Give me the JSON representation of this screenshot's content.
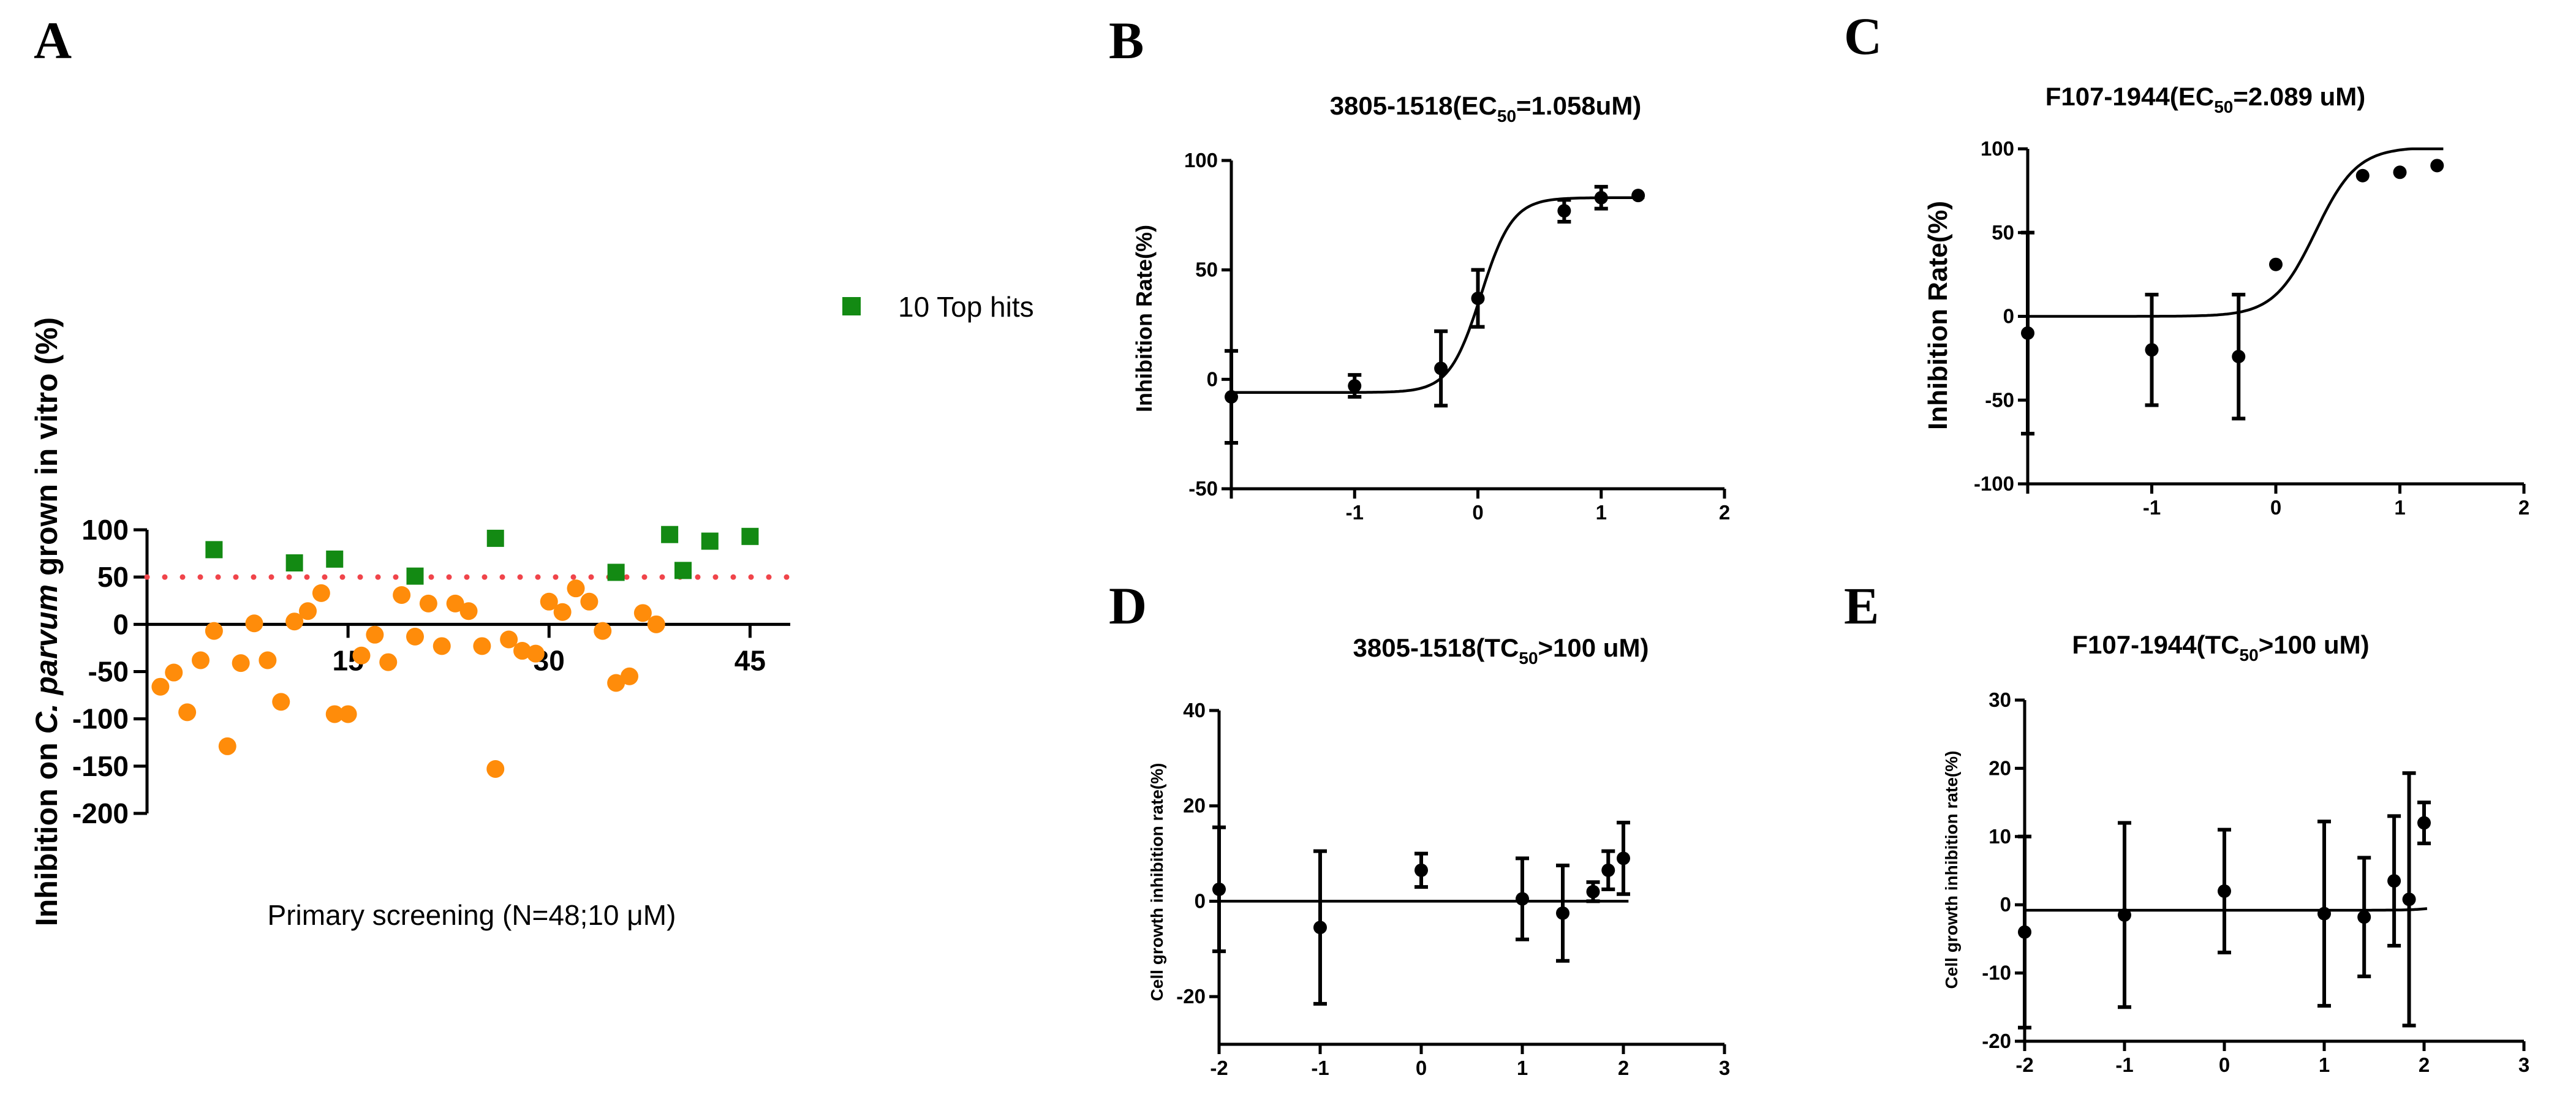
{
  "chart_data": [
    {
      "panel": "A",
      "type": "scatter",
      "ylabel_prefix": "Inhibition on ",
      "ylabel_italic": "C. parvum",
      "ylabel_suffix": " grown in vitro (%)",
      "xlabel": "Primary screening (N=48;10 μM)",
      "ylim": [
        -200,
        100
      ],
      "xlim": [
        0,
        48
      ],
      "yticks": [
        100,
        50,
        0,
        -50,
        -100,
        -150,
        -200
      ],
      "xticks": [
        15,
        30,
        45
      ],
      "threshold": 50,
      "legend": {
        "label": "10 Top hits",
        "placement": "right"
      },
      "series": [
        {
          "name": "10 Top hits",
          "color": "#138a13",
          "marker": "square",
          "points": [
            [
              5,
              79
            ],
            [
              11,
              65
            ],
            [
              14,
              69
            ],
            [
              20,
              51
            ],
            [
              26,
              91
            ],
            [
              35,
              55
            ],
            [
              39,
              95
            ],
            [
              40,
              57
            ],
            [
              42,
              88
            ],
            [
              45,
              93
            ]
          ]
        },
        {
          "name": "",
          "color": "#ff8c0a",
          "marker": "circle",
          "points": [
            [
              1,
              -66
            ],
            [
              2,
              -51
            ],
            [
              3,
              -93
            ],
            [
              4,
              -38
            ],
            [
              5,
              -7
            ],
            [
              6,
              -129
            ],
            [
              7,
              -41
            ],
            [
              8,
              1
            ],
            [
              9,
              -38
            ],
            [
              10,
              -82
            ],
            [
              11,
              3
            ],
            [
              12,
              14
            ],
            [
              13,
              33
            ],
            [
              14,
              -95
            ],
            [
              15,
              -95
            ],
            [
              16,
              -33
            ],
            [
              17,
              -11
            ],
            [
              18,
              -40
            ],
            [
              19,
              31
            ],
            [
              20,
              -13
            ],
            [
              21,
              22
            ],
            [
              22,
              -23
            ],
            [
              23,
              22
            ],
            [
              24,
              14
            ],
            [
              25,
              -23
            ],
            [
              26,
              -153
            ],
            [
              27,
              -16
            ],
            [
              28,
              -28
            ],
            [
              29,
              -31
            ],
            [
              30,
              24
            ],
            [
              31,
              13
            ],
            [
              32,
              38
            ],
            [
              33,
              24
            ],
            [
              34,
              -7
            ],
            [
              35,
              -62
            ],
            [
              36,
              -55
            ],
            [
              37,
              12
            ],
            [
              38,
              0
            ]
          ]
        }
      ]
    },
    {
      "panel": "B",
      "type": "line",
      "title_pre": "3805-1518(EC",
      "title_sub": "50",
      "title_post": "=1.058uM)",
      "ylabel": "Inhibition Rate(%)",
      "xlim": [
        -2,
        2
      ],
      "ylim": [
        -50,
        100
      ],
      "xticks": [
        -1,
        0,
        1,
        2
      ],
      "yticks": [
        -50,
        0,
        50,
        100
      ],
      "fit": {
        "bottom": -6,
        "top": 83,
        "logEC50": 0.0245,
        "hill": 3.4
      },
      "points": [
        {
          "x": -2,
          "y": -8,
          "err": 21
        },
        {
          "x": -1,
          "y": -3,
          "err": 5
        },
        {
          "x": -0.3,
          "y": 5,
          "err": 17
        },
        {
          "x": 0,
          "y": 37,
          "err": 13
        },
        {
          "x": 0.7,
          "y": 77,
          "err": 5
        },
        {
          "x": 1,
          "y": 83,
          "err": 5
        },
        {
          "x": 1.3,
          "y": 84,
          "err": 0
        }
      ]
    },
    {
      "panel": "C",
      "type": "line",
      "title_pre": "F107-1944(EC",
      "title_sub": "50",
      "title_post": "=2.089 uM)",
      "ylabel": "Inhibition Rate(%)",
      "xlim": [
        -2,
        2
      ],
      "ylim": [
        -100,
        100
      ],
      "xticks": [
        -1,
        0,
        1,
        2
      ],
      "yticks": [
        -100,
        -50,
        0,
        50,
        100
      ],
      "fit": {
        "bottom": 0,
        "top": 101,
        "logEC50": 0.32,
        "hill": 2.6
      },
      "points": [
        {
          "x": -2,
          "y": -10,
          "err": 60
        },
        {
          "x": -1,
          "y": -20,
          "err": 33
        },
        {
          "x": -0.3,
          "y": -24,
          "err": 37
        },
        {
          "x": 0,
          "y": 31,
          "err": 0
        },
        {
          "x": 0.7,
          "y": 84,
          "err": 0
        },
        {
          "x": 1,
          "y": 86,
          "err": 0
        },
        {
          "x": 1.3,
          "y": 90,
          "err": 0
        }
      ]
    },
    {
      "panel": "D",
      "type": "line",
      "title_pre": "3805-1518(TC",
      "title_sub": "50",
      "title_post": ">100 uM)",
      "ylabel": "Cell growth inhibition rate(%)",
      "xlim": [
        -2,
        3
      ],
      "ylim": [
        -30,
        40
      ],
      "xticks": [
        -2,
        -1,
        0,
        1,
        2,
        3
      ],
      "yticks": [
        -20,
        0,
        20,
        40
      ],
      "fit": {
        "bottom": 0,
        "top": 0,
        "logEC50": 0,
        "hill": 1
      },
      "points": [
        {
          "x": -2,
          "y": 2.5,
          "err": 13
        },
        {
          "x": -1,
          "y": -5.5,
          "err": 16
        },
        {
          "x": 0,
          "y": 6.5,
          "err": 3.5
        },
        {
          "x": 1,
          "y": 0.5,
          "err": 8.5
        },
        {
          "x": 1.4,
          "y": -2.5,
          "err": 10
        },
        {
          "x": 1.7,
          "y": 2,
          "err": 2
        },
        {
          "x": 1.85,
          "y": 6.5,
          "err": 4
        },
        {
          "x": 2,
          "y": 9,
          "err": 7.5
        }
      ]
    },
    {
      "panel": "E",
      "type": "line",
      "title_pre": "F107-1944(TC",
      "title_sub": "50",
      "title_post": ">100 uM)",
      "ylabel": "Cell growth inhibition rate(%)",
      "xlim": [
        -2,
        3
      ],
      "ylim": [
        -20,
        30
      ],
      "xticks": [
        -2,
        -1,
        0,
        1,
        2,
        3
      ],
      "yticks": [
        -20,
        -10,
        0,
        10,
        20,
        30
      ],
      "fit": {
        "bottom": -0.8,
        "top": 100,
        "logEC50": 2.9,
        "hill": 3
      },
      "points": [
        {
          "x": -2,
          "y": -4,
          "err": 14
        },
        {
          "x": -1,
          "y": -1.5,
          "err": 13.5
        },
        {
          "x": 0,
          "y": 2,
          "err": 9
        },
        {
          "x": 1,
          "y": -1.3,
          "err": 13.5
        },
        {
          "x": 1.4,
          "y": -1.8,
          "err": 8.7
        },
        {
          "x": 1.7,
          "y": 3.5,
          "err": 9.5
        },
        {
          "x": 1.85,
          "y": 0.8,
          "err": 18.5
        },
        {
          "x": 2,
          "y": 12,
          "err": 3
        }
      ]
    }
  ]
}
